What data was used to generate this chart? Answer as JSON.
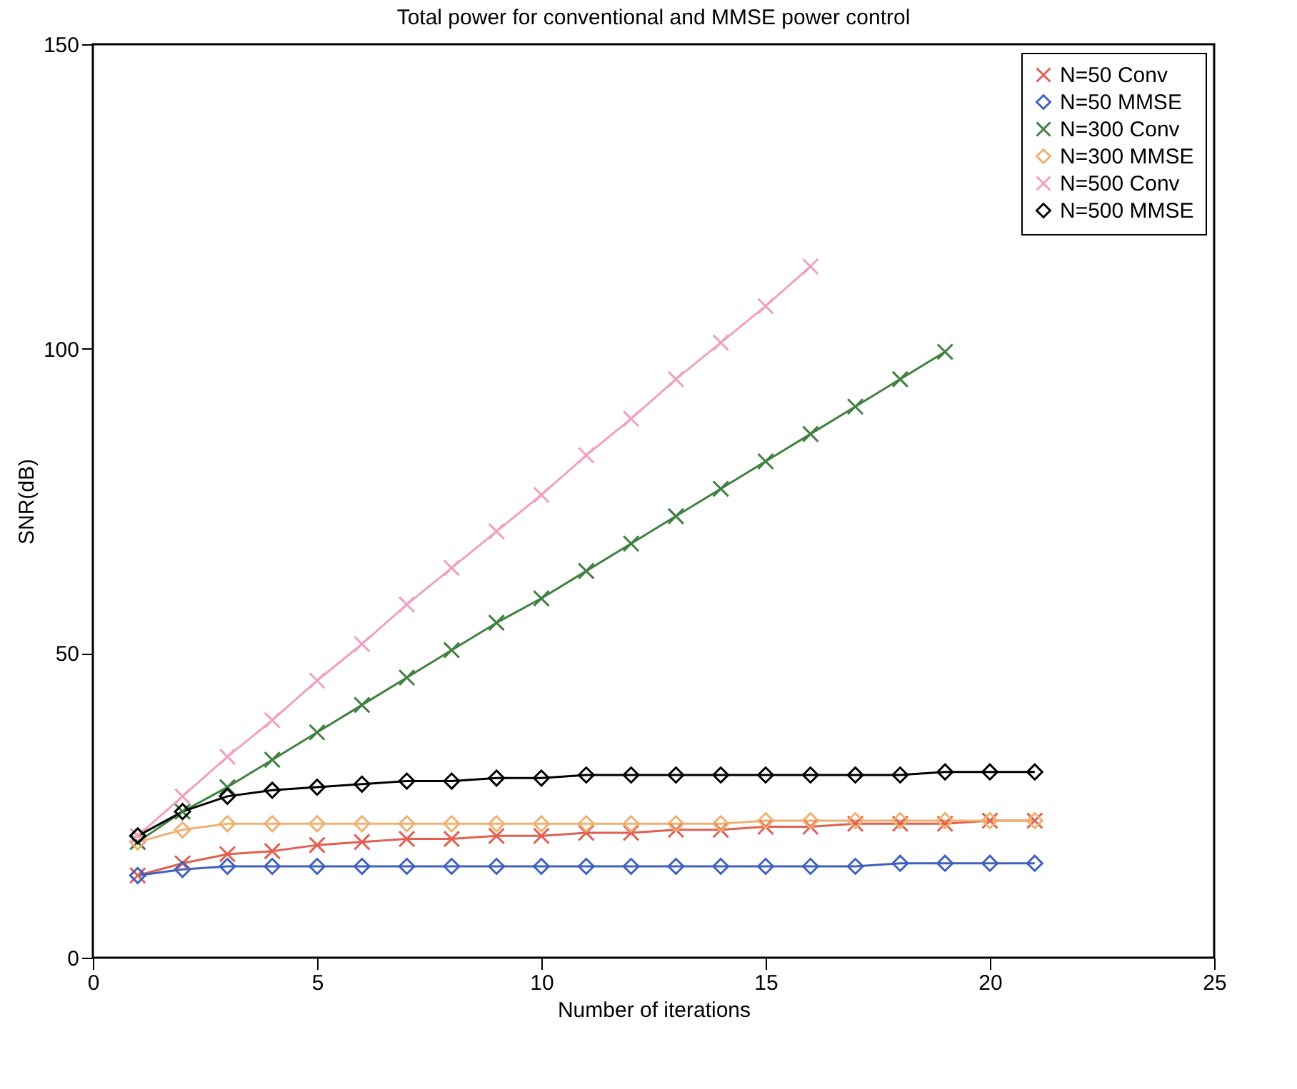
{
  "chart_data": {
    "type": "line",
    "title": "Total power for conventional and MMSE power control",
    "xlabel": "Number of iterations",
    "ylabel": "SNR(dB)",
    "x": [
      1,
      2,
      3,
      4,
      5,
      6,
      7,
      8,
      9,
      10,
      11,
      12,
      13,
      14,
      15,
      16,
      17,
      18,
      19,
      20,
      21
    ],
    "xlim": [
      0,
      25
    ],
    "xticks": [
      0,
      5,
      10,
      15,
      20,
      25
    ],
    "ylim": [
      0,
      150
    ],
    "yticks": [
      0,
      50,
      100,
      150
    ],
    "grid": false,
    "legend": "top right",
    "series": [
      {
        "name": "N=50 Conv",
        "color": "#e06050",
        "marker": "cross",
        "values": [
          13.5,
          15.5,
          17,
          17.5,
          18.5,
          19,
          19.5,
          19.5,
          20,
          20,
          20.5,
          20.5,
          21,
          21,
          21.5,
          21.5,
          22,
          22,
          22,
          22.5,
          22.5
        ]
      },
      {
        "name": "N=50 MMSE",
        "color": "#4060c0",
        "marker": "diamond",
        "values": [
          13.5,
          14.5,
          15,
          15,
          15,
          15,
          15,
          15,
          15,
          15,
          15,
          15,
          15,
          15,
          15,
          15,
          15,
          15.5,
          15.5,
          15.5,
          15.5
        ]
      },
      {
        "name": "N=300 Conv",
        "color": "#408040",
        "marker": "cross",
        "values": [
          19,
          24,
          28,
          32.5,
          37,
          41.5,
          46,
          50.5,
          55,
          59,
          63.5,
          68,
          72.5,
          77,
          81.5,
          86,
          90.5,
          95,
          99.5,
          null,
          null
        ]
      },
      {
        "name": "N=300 MMSE",
        "color": "#f0b070",
        "marker": "diamond",
        "values": [
          19,
          21,
          22,
          22,
          22,
          22,
          22,
          22,
          22,
          22,
          22,
          22,
          22,
          22,
          22.5,
          22.5,
          22.5,
          22.5,
          22.5,
          22.5,
          22.5
        ]
      },
      {
        "name": "N=500 Conv",
        "color": "#f0a0c0",
        "marker": "cross",
        "values": [
          20,
          26.5,
          33,
          39,
          45.5,
          51.5,
          58,
          64,
          70,
          76,
          82.5,
          88.5,
          95,
          101,
          107,
          113.5,
          null,
          null,
          null,
          null,
          null
        ]
      },
      {
        "name": "N=500 MMSE",
        "color": "#000000",
        "marker": "diamond",
        "values": [
          20,
          24,
          26.5,
          27.5,
          28,
          28.5,
          29,
          29,
          29.5,
          29.5,
          30,
          30,
          30,
          30,
          30,
          30,
          30,
          30,
          30.5,
          30.5,
          30.5
        ]
      }
    ]
  }
}
